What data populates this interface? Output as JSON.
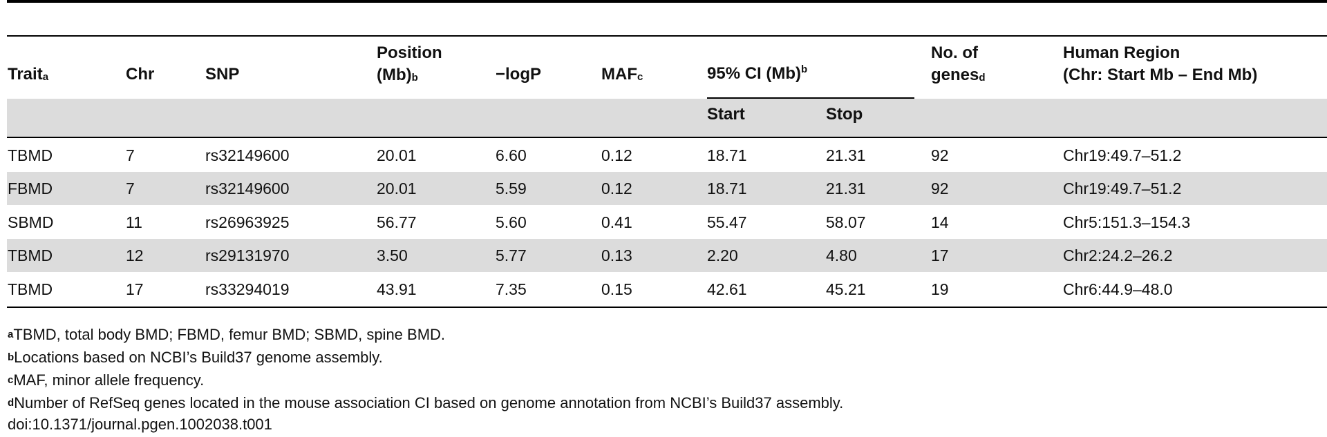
{
  "table": {
    "headers": {
      "trait": {
        "label": "Trait",
        "mark": "a"
      },
      "chr": {
        "label": "Chr"
      },
      "snp": {
        "label": "SNP"
      },
      "position": {
        "line1": "Position",
        "line2": "(Mb)",
        "mark": "b"
      },
      "logp": {
        "label": "−logP"
      },
      "maf": {
        "label": "MAF",
        "mark": "c"
      },
      "ci": {
        "label": "95% CI (Mb)",
        "mark": "b",
        "start": "Start",
        "stop": "Stop"
      },
      "genes": {
        "line1": "No. of",
        "line2": "genes",
        "mark": "d"
      },
      "human": {
        "line1": "Human Region",
        "line2": "(Chr: Start Mb – End Mb)"
      }
    },
    "rows": [
      {
        "trait": "TBMD",
        "chr": "7",
        "snp": "rs32149600",
        "position": "20.01",
        "logp": "6.60",
        "maf": "0.12",
        "start": "18.71",
        "stop": "21.31",
        "genes": "92",
        "human": "Chr19:49.7–51.2"
      },
      {
        "trait": "FBMD",
        "chr": "7",
        "snp": "rs32149600",
        "position": "20.01",
        "logp": "5.59",
        "maf": "0.12",
        "start": "18.71",
        "stop": "21.31",
        "genes": "92",
        "human": "Chr19:49.7–51.2"
      },
      {
        "trait": "SBMD",
        "chr": "11",
        "snp": "rs26963925",
        "position": "56.77",
        "logp": "5.60",
        "maf": "0.41",
        "start": "55.47",
        "stop": "58.07",
        "genes": "14",
        "human": "Chr5:151.3–154.3"
      },
      {
        "trait": "TBMD",
        "chr": "12",
        "snp": "rs29131970",
        "position": "3.50",
        "logp": "5.77",
        "maf": "0.13",
        "start": "2.20",
        "stop": "4.80",
        "genes": "17",
        "human": "Chr2:24.2–26.2"
      },
      {
        "trait": "TBMD",
        "chr": "17",
        "snp": "rs33294019",
        "position": "43.91",
        "logp": "7.35",
        "maf": "0.15",
        "start": "42.61",
        "stop": "45.21",
        "genes": "19",
        "human": "Chr6:44.9–48.0"
      }
    ]
  },
  "footnotes": [
    {
      "mark": "a",
      "text": "TBMD, total body BMD; FBMD, femur BMD; SBMD, spine BMD."
    },
    {
      "mark": "b",
      "text": "Locations based on NCBI’s Build37 genome assembly."
    },
    {
      "mark": "c",
      "text": "MAF, minor allele frequency."
    },
    {
      "mark": "d",
      "text": "Number of RefSeq genes located in the mouse association CI based on genome annotation from NCBI’s Build37 assembly."
    }
  ],
  "doi": "doi:10.1371/journal.pgen.1002038.t001"
}
